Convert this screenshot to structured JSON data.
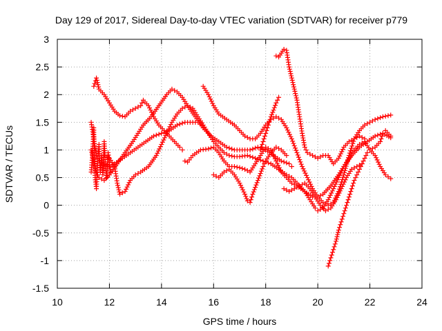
{
  "chart_data": {
    "type": "scatter",
    "title": "Day 129 of 2017, Sidereal Day-to-day VTEC variation (SDTVAR) for receiver p779",
    "xlabel": "GPS time / hours",
    "ylabel": "SDTVAR / TECUs",
    "xlim": [
      10,
      24
    ],
    "ylim": [
      -1.5,
      3
    ],
    "xticks": [
      "10",
      "12",
      "14",
      "16",
      "18",
      "20",
      "22",
      "24"
    ],
    "yticks": [
      "3",
      "2.5",
      "2",
      "1.5",
      "1",
      "0.5",
      "0",
      "-0.5",
      "-1",
      "-1.5"
    ],
    "grid": true,
    "marker": "plus",
    "color": "#ff0000",
    "series": [
      {
        "name": "arc-1",
        "points": [
          [
            11.3,
            1.5
          ],
          [
            11.4,
            1.2
          ],
          [
            11.5,
            0.9
          ],
          [
            11.6,
            0.8
          ],
          [
            11.8,
            0.75
          ],
          [
            12.0,
            0.7
          ],
          [
            12.2,
            0.75
          ],
          [
            12.5,
            0.85
          ],
          [
            12.8,
            0.95
          ],
          [
            13.1,
            1.05
          ],
          [
            13.4,
            1.15
          ],
          [
            13.7,
            1.25
          ],
          [
            14.0,
            1.3
          ],
          [
            14.3,
            1.35
          ],
          [
            14.6,
            1.45
          ],
          [
            14.9,
            1.5
          ],
          [
            15.2,
            1.5
          ],
          [
            15.5,
            1.5
          ],
          [
            15.6,
            1.4
          ]
        ]
      },
      {
        "name": "arc-2",
        "points": [
          [
            11.3,
            1.0
          ],
          [
            11.4,
            0.8
          ],
          [
            11.5,
            0.6
          ],
          [
            11.6,
            0.5
          ],
          [
            11.8,
            0.45
          ],
          [
            12.0,
            0.55
          ],
          [
            12.3,
            0.75
          ],
          [
            12.6,
            0.95
          ],
          [
            12.9,
            1.15
          ],
          [
            13.1,
            1.3
          ],
          [
            13.3,
            1.45
          ],
          [
            13.6,
            1.6
          ],
          [
            13.9,
            1.8
          ],
          [
            14.2,
            2.0
          ],
          [
            14.4,
            2.1
          ],
          [
            14.6,
            2.05
          ],
          [
            14.8,
            1.95
          ],
          [
            15.0,
            1.8
          ],
          [
            15.3,
            1.6
          ],
          [
            15.6,
            1.4
          ],
          [
            15.9,
            1.25
          ],
          [
            16.2,
            1.15
          ],
          [
            16.5,
            1.05
          ],
          [
            16.8,
            1.0
          ],
          [
            17.1,
            1.0
          ],
          [
            17.4,
            1.0
          ],
          [
            17.7,
            1.05
          ],
          [
            18.0,
            1.0
          ],
          [
            18.3,
            0.9
          ],
          [
            18.6,
            0.8
          ],
          [
            18.9,
            0.75
          ],
          [
            19.0,
            0.7
          ]
        ]
      },
      {
        "name": "arc-3",
        "points": [
          [
            11.4,
            2.15
          ],
          [
            11.5,
            2.3
          ],
          [
            11.6,
            2.1
          ],
          [
            11.8,
            2.0
          ],
          [
            12.0,
            1.85
          ],
          [
            12.2,
            1.7
          ],
          [
            12.4,
            1.62
          ],
          [
            12.6,
            1.6
          ],
          [
            12.8,
            1.7
          ],
          [
            13.0,
            1.75
          ],
          [
            13.2,
            1.8
          ],
          [
            13.3,
            1.9
          ],
          [
            13.5,
            1.8
          ],
          [
            13.7,
            1.6
          ],
          [
            13.9,
            1.45
          ],
          [
            14.1,
            1.35
          ],
          [
            14.3,
            1.25
          ],
          [
            14.5,
            1.15
          ],
          [
            14.7,
            1.05
          ],
          [
            14.8,
            1.0
          ]
        ]
      },
      {
        "name": "arc-4",
        "points": [
          [
            11.8,
            0.9
          ],
          [
            12.0,
            0.85
          ],
          [
            12.2,
            0.7
          ],
          [
            12.3,
            0.4
          ],
          [
            12.4,
            0.2
          ],
          [
            12.6,
            0.25
          ],
          [
            12.8,
            0.45
          ],
          [
            13.0,
            0.55
          ],
          [
            13.2,
            0.6
          ],
          [
            13.5,
            0.7
          ],
          [
            13.8,
            0.9
          ],
          [
            14.0,
            1.1
          ],
          [
            14.2,
            1.3
          ],
          [
            14.4,
            1.5
          ],
          [
            14.6,
            1.65
          ],
          [
            14.8,
            1.75
          ],
          [
            15.0,
            1.8
          ],
          [
            15.2,
            1.75
          ],
          [
            15.4,
            1.6
          ],
          [
            15.6,
            1.45
          ],
          [
            15.8,
            1.3
          ],
          [
            16.0,
            1.15
          ],
          [
            16.2,
            1.05
          ],
          [
            16.4,
            0.95
          ],
          [
            16.6,
            0.9
          ],
          [
            16.8,
            0.88
          ],
          [
            17.0,
            0.88
          ],
          [
            17.3,
            0.9
          ],
          [
            17.6,
            0.85
          ],
          [
            17.9,
            0.8
          ],
          [
            18.2,
            0.75
          ],
          [
            18.5,
            0.65
          ],
          [
            18.8,
            0.55
          ],
          [
            19.0,
            0.5
          ],
          [
            19.2,
            0.4
          ],
          [
            19.5,
            0.25
          ],
          [
            19.7,
            0.1
          ],
          [
            19.9,
            -0.05
          ],
          [
            20.0,
            -0.1
          ],
          [
            20.2,
            -0.05
          ],
          [
            20.4,
            0.1
          ],
          [
            20.6,
            0.3
          ],
          [
            20.8,
            0.5
          ],
          [
            21.0,
            0.7
          ],
          [
            21.2,
            0.85
          ],
          [
            21.4,
            1.0
          ],
          [
            21.6,
            1.1
          ],
          [
            21.8,
            1.15
          ],
          [
            22.0,
            1.0
          ],
          [
            22.2,
            0.9
          ],
          [
            22.4,
            0.7
          ],
          [
            22.6,
            0.55
          ],
          [
            22.8,
            0.48
          ]
        ]
      },
      {
        "name": "arc-5",
        "points": [
          [
            14.9,
            0.8
          ],
          [
            15.0,
            0.78
          ],
          [
            15.2,
            0.9
          ],
          [
            15.5,
            1.0
          ],
          [
            15.8,
            1.02
          ],
          [
            16.0,
            1.05
          ],
          [
            16.2,
            0.95
          ],
          [
            16.4,
            0.8
          ],
          [
            16.6,
            0.7
          ],
          [
            16.8,
            0.7
          ],
          [
            17.0,
            0.68
          ],
          [
            17.2,
            0.65
          ],
          [
            17.4,
            0.6
          ],
          [
            17.6,
            0.75
          ],
          [
            17.8,
            0.9
          ],
          [
            18.0,
            1.05
          ],
          [
            18.2,
            1.0
          ],
          [
            18.4,
            0.8
          ],
          [
            18.6,
            0.6
          ],
          [
            18.8,
            0.5
          ],
          [
            19.0,
            0.4
          ],
          [
            19.2,
            0.35
          ],
          [
            19.5,
            0.25
          ],
          [
            19.8,
            0.15
          ],
          [
            20.0,
            0.15
          ],
          [
            20.2,
            0.2
          ],
          [
            20.5,
            0.35
          ],
          [
            20.8,
            0.55
          ],
          [
            21.0,
            0.7
          ],
          [
            21.3,
            0.9
          ],
          [
            21.6,
            1.05
          ],
          [
            21.9,
            1.15
          ],
          [
            22.2,
            1.25
          ],
          [
            22.5,
            1.3
          ],
          [
            22.8,
            1.22
          ]
        ]
      },
      {
        "name": "arc-6",
        "points": [
          [
            15.6,
            2.15
          ],
          [
            15.8,
            2.0
          ],
          [
            16.0,
            1.8
          ],
          [
            16.2,
            1.65
          ],
          [
            16.5,
            1.55
          ],
          [
            16.8,
            1.45
          ],
          [
            17.0,
            1.35
          ],
          [
            17.2,
            1.25
          ],
          [
            17.4,
            1.2
          ],
          [
            17.6,
            1.2
          ],
          [
            17.8,
            1.3
          ],
          [
            18.0,
            1.45
          ],
          [
            18.2,
            1.55
          ],
          [
            18.4,
            1.6
          ],
          [
            18.6,
            1.55
          ],
          [
            18.8,
            1.4
          ],
          [
            19.0,
            1.2
          ],
          [
            19.2,
            0.95
          ],
          [
            19.4,
            0.7
          ],
          [
            19.6,
            0.5
          ],
          [
            19.8,
            0.3
          ],
          [
            20.0,
            0.15
          ],
          [
            20.2,
            0.05
          ],
          [
            20.4,
            0.0
          ],
          [
            20.6,
            0.05
          ],
          [
            20.8,
            0.25
          ],
          [
            21.0,
            0.55
          ],
          [
            21.2,
            0.9
          ],
          [
            21.4,
            1.2
          ],
          [
            21.6,
            1.35
          ],
          [
            21.8,
            1.45
          ],
          [
            22.0,
            1.5
          ],
          [
            22.2,
            1.55
          ],
          [
            22.5,
            1.6
          ],
          [
            22.8,
            1.63
          ]
        ]
      },
      {
        "name": "arc-7",
        "points": [
          [
            16.0,
            0.55
          ],
          [
            16.2,
            0.5
          ],
          [
            16.4,
            0.6
          ],
          [
            16.6,
            0.65
          ],
          [
            16.8,
            0.55
          ],
          [
            17.0,
            0.4
          ],
          [
            17.2,
            0.2
          ],
          [
            17.3,
            0.08
          ],
          [
            17.4,
            0.05
          ],
          [
            17.5,
            0.2
          ],
          [
            17.7,
            0.45
          ],
          [
            17.9,
            0.7
          ],
          [
            18.0,
            0.8
          ],
          [
            18.2,
            0.95
          ],
          [
            18.4,
            1.05
          ],
          [
            18.6,
            1.0
          ],
          [
            18.8,
            0.9
          ]
        ]
      },
      {
        "name": "arc-8",
        "points": [
          [
            17.8,
            1.0
          ],
          [
            17.9,
            1.15
          ],
          [
            18.0,
            1.3
          ],
          [
            18.1,
            1.45
          ],
          [
            18.2,
            1.6
          ],
          [
            18.3,
            1.72
          ],
          [
            18.4,
            1.85
          ],
          [
            18.5,
            1.95
          ]
        ]
      },
      {
        "name": "arc-9",
        "points": [
          [
            18.4,
            2.7
          ],
          [
            18.5,
            2.68
          ],
          [
            18.6,
            2.75
          ],
          [
            18.7,
            2.82
          ],
          [
            18.8,
            2.8
          ],
          [
            18.9,
            2.5
          ],
          [
            19.0,
            2.3
          ],
          [
            19.1,
            2.1
          ],
          [
            19.2,
            1.9
          ],
          [
            19.3,
            1.6
          ],
          [
            19.4,
            1.3
          ],
          [
            19.5,
            1.05
          ],
          [
            19.6,
            0.95
          ],
          [
            19.8,
            0.9
          ],
          [
            20.0,
            0.85
          ],
          [
            20.2,
            0.9
          ],
          [
            20.4,
            0.9
          ],
          [
            20.6,
            0.75
          ],
          [
            20.8,
            0.85
          ],
          [
            21.0,
            1.05
          ],
          [
            21.2,
            1.15
          ],
          [
            21.4,
            1.2
          ],
          [
            21.6,
            1.25
          ],
          [
            21.8,
            1.2
          ]
        ]
      },
      {
        "name": "arc-10",
        "points": [
          [
            18.7,
            0.3
          ],
          [
            18.9,
            0.25
          ],
          [
            19.1,
            0.3
          ],
          [
            19.3,
            0.35
          ],
          [
            19.5,
            0.4
          ],
          [
            19.7,
            0.3
          ],
          [
            19.9,
            0.15
          ],
          [
            20.1,
            0.0
          ],
          [
            20.3,
            -0.1
          ],
          [
            20.5,
            -0.05
          ],
          [
            20.7,
            0.1
          ],
          [
            20.9,
            0.3
          ],
          [
            21.1,
            0.5
          ],
          [
            21.3,
            0.65
          ],
          [
            21.5,
            0.7
          ],
          [
            21.7,
            0.75
          ]
        ]
      },
      {
        "name": "arc-11",
        "points": [
          [
            20.4,
            -1.1
          ],
          [
            20.5,
            -0.95
          ],
          [
            20.6,
            -0.8
          ],
          [
            20.7,
            -0.65
          ],
          [
            20.8,
            -0.45
          ],
          [
            20.9,
            -0.3
          ],
          [
            21.0,
            -0.15
          ],
          [
            21.1,
            0.0
          ],
          [
            21.2,
            0.15
          ],
          [
            21.3,
            0.3
          ],
          [
            21.4,
            0.45
          ],
          [
            21.5,
            0.55
          ],
          [
            21.6,
            0.65
          ],
          [
            21.7,
            0.75
          ],
          [
            21.8,
            0.85
          ],
          [
            21.9,
            0.95
          ],
          [
            22.0,
            1.0
          ],
          [
            22.2,
            1.05
          ],
          [
            22.4,
            1.15
          ],
          [
            22.5,
            1.3
          ],
          [
            22.6,
            1.35
          ],
          [
            22.8,
            1.25
          ]
        ]
      },
      {
        "name": "arc-12",
        "points": [
          [
            11.3,
            0.6
          ],
          [
            11.35,
            0.9
          ],
          [
            11.4,
            1.4
          ],
          [
            11.45,
            0.5
          ],
          [
            11.5,
            0.3
          ],
          [
            11.55,
            0.8
          ],
          [
            11.6,
            1.1
          ],
          [
            11.65,
            0.6
          ],
          [
            11.7,
            0.9
          ],
          [
            11.75,
            0.55
          ],
          [
            11.8,
            1.15
          ],
          [
            11.85,
            0.7
          ],
          [
            11.9,
            0.5
          ],
          [
            11.95,
            0.95
          ],
          [
            12.05,
            0.6
          ]
        ]
      }
    ]
  }
}
